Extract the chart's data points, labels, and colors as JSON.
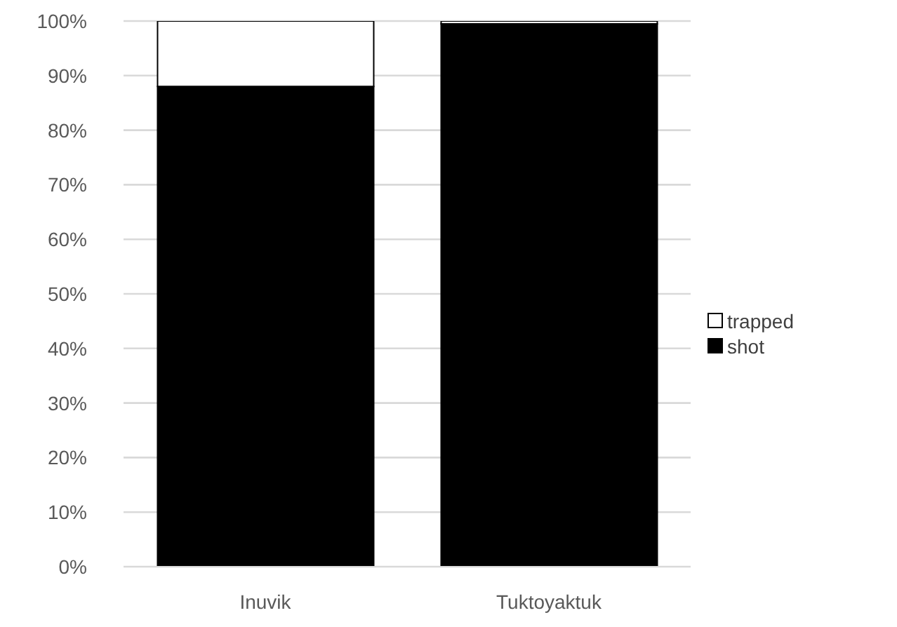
{
  "chart_data": {
    "type": "bar",
    "stacked": true,
    "categories": [
      "Inuvik",
      "Tuktoyaktuk"
    ],
    "series": [
      {
        "name": "shot",
        "color": "#000000",
        "values": [
          88,
          99.5
        ]
      },
      {
        "name": "trapped",
        "color": "#ffffff",
        "values": [
          12,
          0.5
        ]
      }
    ],
    "ylim": [
      0,
      100
    ],
    "yticks": [
      {
        "value": 0,
        "label": "0%"
      },
      {
        "value": 10,
        "label": "10%"
      },
      {
        "value": 20,
        "label": "20%"
      },
      {
        "value": 30,
        "label": "30%"
      },
      {
        "value": 40,
        "label": "40%"
      },
      {
        "value": 50,
        "label": "50%"
      },
      {
        "value": 60,
        "label": "60%"
      },
      {
        "value": 70,
        "label": "70%"
      },
      {
        "value": 80,
        "label": "80%"
      },
      {
        "value": 90,
        "label": "90%"
      },
      {
        "value": 100,
        "label": "100%"
      }
    ],
    "grid": "y",
    "legend": "right"
  }
}
